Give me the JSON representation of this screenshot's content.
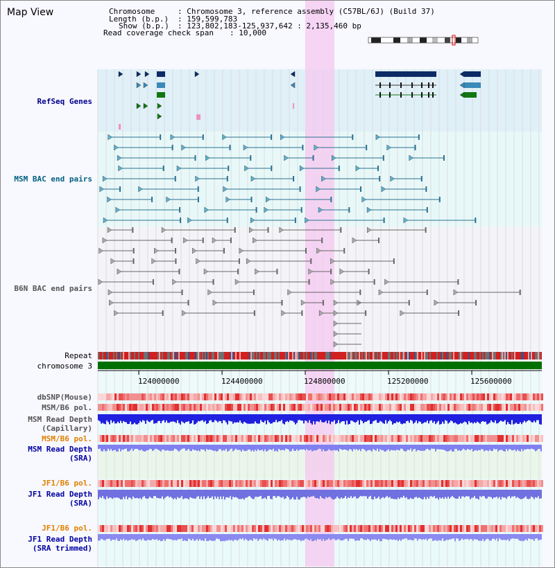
{
  "header": {
    "title": "Map View",
    "chromosome_key": "Chromosome",
    "chromosome_val": "Chromosome 3, reference assembly (C57BL/6J) (Build 37)",
    "length_key": "Length (b.p.)",
    "length_val": "159,599,783",
    "show_key": "Show (b.p.)",
    "show_val": "123,802,183-125,937,642 : 2,135,460 bp",
    "coverage_key": "Read coverage check span",
    "coverage_val": "10,000"
  },
  "tracks": {
    "refseq": "RefSeq Genes",
    "msm_bac": "MSM BAC end pairs",
    "b6n_bac": "B6N BAC end pairs",
    "repeat": "Repeat",
    "chromosome": "chromosome 3",
    "dbsnp": "dbSNP(Mouse)",
    "msm_b6_pol_1": "MSM/B6 pol.",
    "msm_read_depth_cap_1": "MSM Read Depth",
    "msm_read_depth_cap_2": "(Capillary)",
    "msm_b6_pol_2": "MSM/B6 pol.",
    "msm_read_depth_sra_1": "MSM Read Depth",
    "msm_read_depth_sra_2": "(SRA)",
    "jf1_b6_pol_1": "JF1/B6 pol.",
    "jf1_read_depth_sra_1": "JF1 Read Depth",
    "jf1_read_depth_sra_2": "(SRA)",
    "jf1_b6_pol_2": "JF1/B6 pol.",
    "jf1_read_depth_trim_1": "JF1 Read Depth",
    "jf1_read_depth_trim_2": "(SRA trimmed)"
  },
  "ruler": {
    "ticks": [
      "124000000",
      "124400000",
      "124800000",
      "125200000",
      "125600000"
    ]
  },
  "colors": {
    "refseq_label": "#00008b",
    "msm_label": "#006080",
    "b6n_label": "#555555",
    "orange_label": "#e08000",
    "blue_label": "#0000a0",
    "highlight": "#f6c8f0",
    "chromosome": "#007000"
  }
}
